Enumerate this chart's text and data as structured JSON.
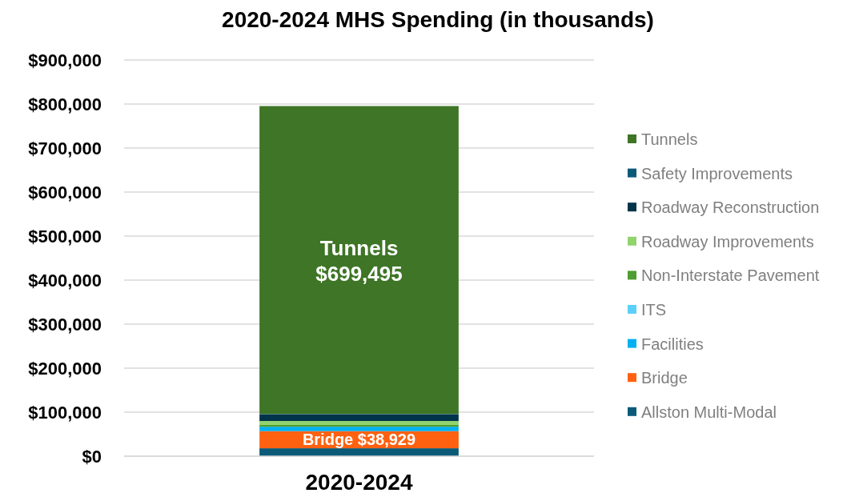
{
  "chart_data": {
    "type": "bar",
    "title": "2020-2024 MHS Spending (in thousands)",
    "categories": [
      "2020-2024"
    ],
    "stacked": true,
    "ylim": [
      0,
      900000
    ],
    "yticks": [
      {
        "value": 0,
        "label": "$0"
      },
      {
        "value": 100000,
        "label": "$100,000"
      },
      {
        "value": 200000,
        "label": "$200,000"
      },
      {
        "value": 300000,
        "label": "$300,000"
      },
      {
        "value": 400000,
        "label": "$400,000"
      },
      {
        "value": 500000,
        "label": "$500,000"
      },
      {
        "value": 600000,
        "label": "$600,000"
      },
      {
        "value": 700000,
        "label": "$700,000"
      },
      {
        "value": 800000,
        "label": "$800,000"
      },
      {
        "value": 900000,
        "label": "$900,000"
      }
    ],
    "grid": "y",
    "legend": "right",
    "series": [
      {
        "name": "Allston Multi-Modal",
        "color": "#0b5a78",
        "values": [
          18000
        ]
      },
      {
        "name": "Bridge",
        "color": "#ff6111",
        "values": [
          38929
        ],
        "value_labels": [
          "$38,929"
        ]
      },
      {
        "name": "Facilities",
        "color": "#00b0f0",
        "values": [
          10000
        ]
      },
      {
        "name": "ITS",
        "color": "#5bd1f9",
        "values": [
          null
        ]
      },
      {
        "name": "Non-Interstate Pavement",
        "color": "#4f9e31",
        "values": [
          4000
        ]
      },
      {
        "name": "Roadway Improvements",
        "color": "#92d36e",
        "values": [
          9000
        ]
      },
      {
        "name": "Roadway Reconstruction",
        "color": "#00344a",
        "values": [
          15000
        ]
      },
      {
        "name": "Safety Improvements",
        "color": "#0b5a78",
        "values": [
          1000
        ]
      },
      {
        "name": "Tunnels",
        "color": "#3e7526",
        "values": [
          699495
        ],
        "value_labels": [
          "$699,495"
        ]
      }
    ]
  }
}
